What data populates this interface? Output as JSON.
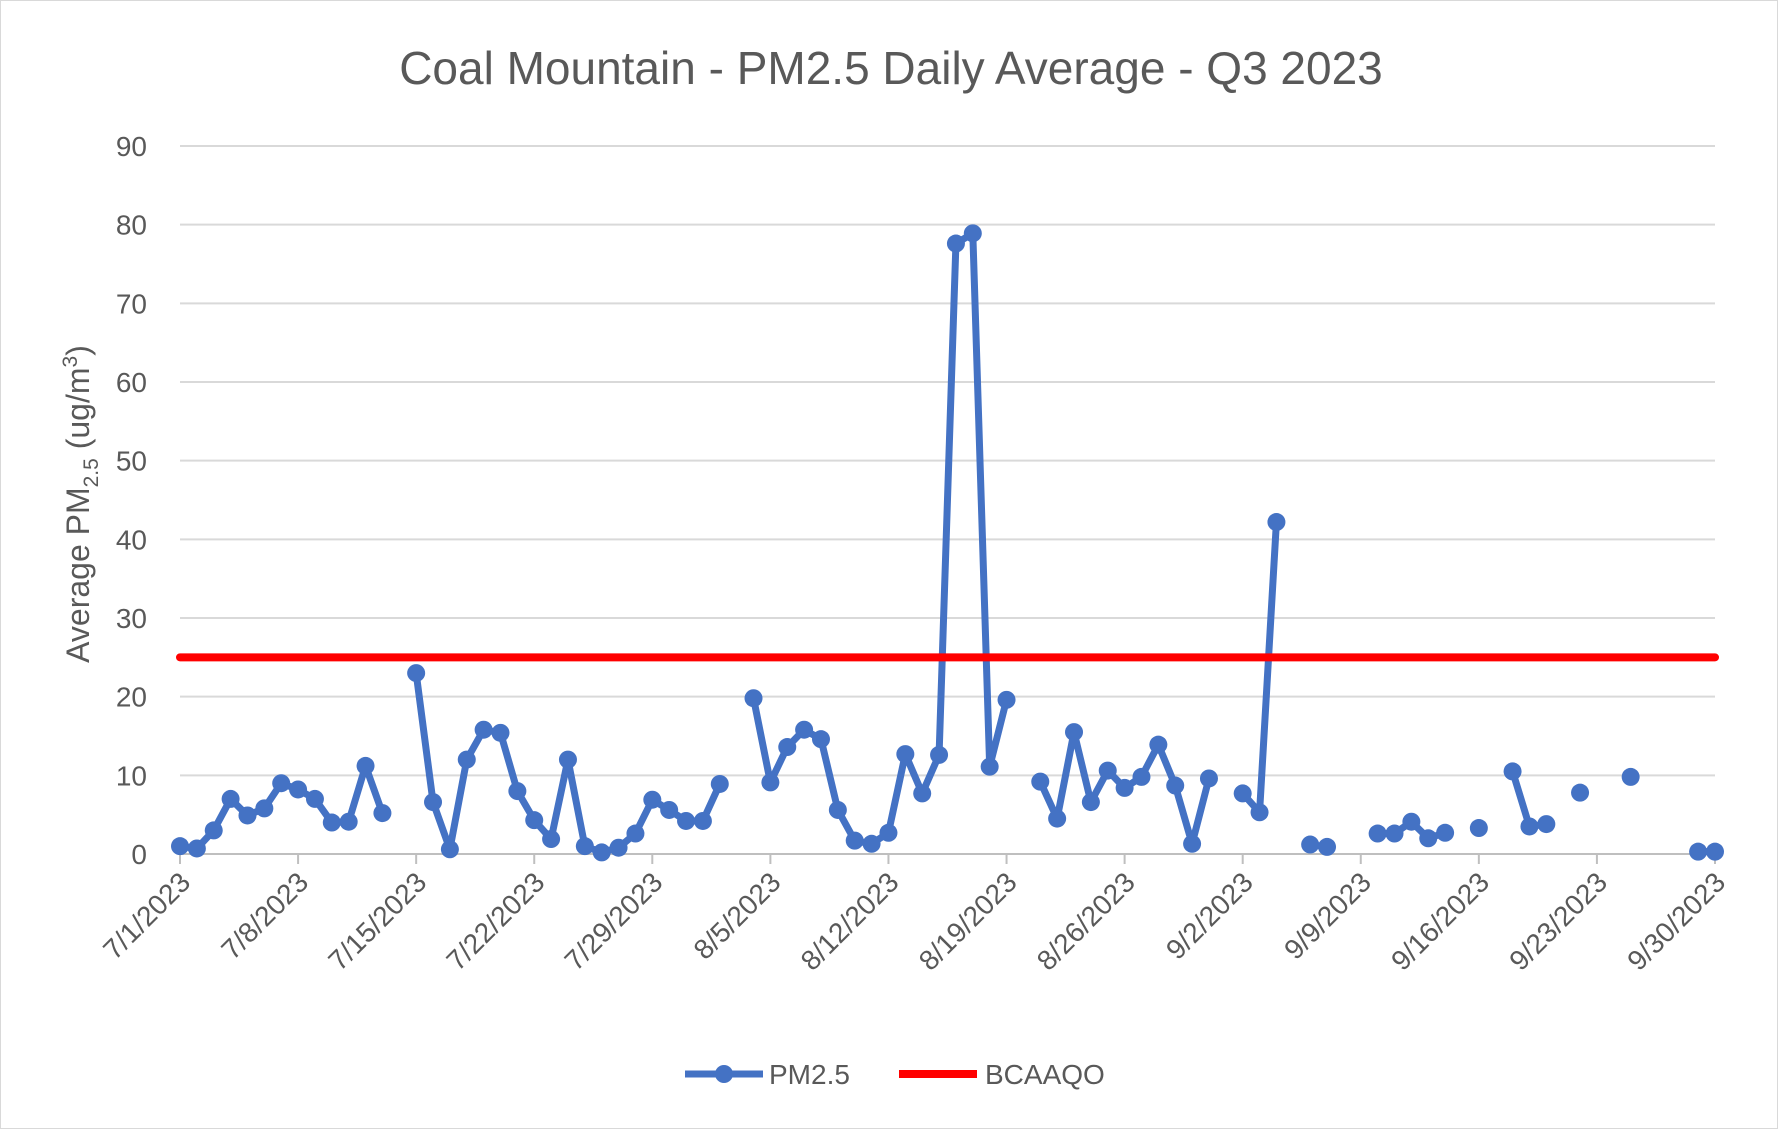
{
  "chart_data": {
    "type": "line",
    "title": "Coal Mountain - PM2.5 Daily Average - Q3 2023",
    "ylabel": "Average PM2.5 (ug/m3)",
    "ylabel_parts": {
      "main": "Average PM",
      "sub": "2.5",
      "unit_open": " (ug/m",
      "sup": "3",
      "unit_close": ")"
    },
    "xlabel": "",
    "ylim": [
      0,
      90
    ],
    "yticks": [
      0,
      10,
      20,
      30,
      40,
      50,
      60,
      70,
      80,
      90
    ],
    "x_start": "7/1/2023",
    "x_end": "9/30/2023",
    "xticks": [
      "7/1/2023",
      "7/8/2023",
      "7/15/2023",
      "7/22/2023",
      "7/29/2023",
      "8/5/2023",
      "8/12/2023",
      "8/19/2023",
      "8/26/2023",
      "9/2/2023",
      "9/9/2023",
      "9/16/2023",
      "9/23/2023",
      "9/30/2023"
    ],
    "grid": true,
    "legend_position": "bottom",
    "series": [
      {
        "name": "PM2.5",
        "color": "#4472C4",
        "marker": "circle",
        "points": [
          [
            "7/1/2023",
            1.0
          ],
          [
            "7/2/2023",
            0.7
          ],
          [
            "7/3/2023",
            3.0
          ],
          [
            "7/4/2023",
            7.0
          ],
          [
            "7/5/2023",
            4.9
          ],
          [
            "7/6/2023",
            5.8
          ],
          [
            "7/7/2023",
            9.0
          ],
          [
            "7/8/2023",
            8.2
          ],
          [
            "7/9/2023",
            7.0
          ],
          [
            "7/10/2023",
            4.0
          ],
          [
            "7/11/2023",
            4.1
          ],
          [
            "7/12/2023",
            11.2
          ],
          [
            "7/13/2023",
            5.2
          ],
          [
            "7/14/2023",
            null
          ],
          [
            "7/15/2023",
            23.0
          ],
          [
            "7/16/2023",
            6.6
          ],
          [
            "7/17/2023",
            0.6
          ],
          [
            "7/18/2023",
            12.0
          ],
          [
            "7/19/2023",
            15.8
          ],
          [
            "7/20/2023",
            15.4
          ],
          [
            "7/21/2023",
            8.0
          ],
          [
            "7/22/2023",
            4.3
          ],
          [
            "7/23/2023",
            1.9
          ],
          [
            "7/24/2023",
            12.0
          ],
          [
            "7/25/2023",
            1.0
          ],
          [
            "7/26/2023",
            0.2
          ],
          [
            "7/27/2023",
            0.8
          ],
          [
            "7/28/2023",
            2.6
          ],
          [
            "7/29/2023",
            6.9
          ],
          [
            "7/30/2023",
            5.6
          ],
          [
            "7/31/2023",
            4.2
          ],
          [
            "8/1/2023",
            4.2
          ],
          [
            "8/2/2023",
            8.9
          ],
          [
            "8/3/2023",
            null
          ],
          [
            "8/4/2023",
            19.8
          ],
          [
            "8/5/2023",
            9.1
          ],
          [
            "8/6/2023",
            13.6
          ],
          [
            "8/7/2023",
            15.8
          ],
          [
            "8/8/2023",
            14.6
          ],
          [
            "8/9/2023",
            5.6
          ],
          [
            "8/10/2023",
            1.7
          ],
          [
            "8/11/2023",
            1.3
          ],
          [
            "8/12/2023",
            2.7
          ],
          [
            "8/13/2023",
            12.7
          ],
          [
            "8/14/2023",
            7.7
          ],
          [
            "8/15/2023",
            12.6
          ],
          [
            "8/16/2023",
            77.6
          ],
          [
            "8/17/2023",
            78.9
          ],
          [
            "8/18/2023",
            11.1
          ],
          [
            "8/19/2023",
            19.6
          ],
          [
            "8/20/2023",
            null
          ],
          [
            "8/21/2023",
            9.2
          ],
          [
            "8/22/2023",
            4.5
          ],
          [
            "8/23/2023",
            15.5
          ],
          [
            "8/24/2023",
            6.6
          ],
          [
            "8/25/2023",
            10.6
          ],
          [
            "8/26/2023",
            8.4
          ],
          [
            "8/27/2023",
            9.8
          ],
          [
            "8/28/2023",
            13.9
          ],
          [
            "8/29/2023",
            8.7
          ],
          [
            "8/30/2023",
            1.3
          ],
          [
            "8/31/2023",
            9.6
          ],
          [
            "9/1/2023",
            null
          ],
          [
            "9/2/2023",
            7.7
          ],
          [
            "9/3/2023",
            5.3
          ],
          [
            "9/4/2023",
            42.2
          ],
          [
            "9/5/2023",
            null
          ],
          [
            "9/6/2023",
            1.2
          ],
          [
            "9/7/2023",
            0.9
          ],
          [
            "9/8/2023",
            null
          ],
          [
            "9/9/2023",
            null
          ],
          [
            "9/10/2023",
            2.6
          ],
          [
            "9/11/2023",
            2.6
          ],
          [
            "9/12/2023",
            4.1
          ],
          [
            "9/13/2023",
            2.0
          ],
          [
            "9/14/2023",
            2.7
          ],
          [
            "9/15/2023",
            null
          ],
          [
            "9/16/2023",
            3.3
          ],
          [
            "9/17/2023",
            null
          ],
          [
            "9/18/2023",
            10.5
          ],
          [
            "9/19/2023",
            3.5
          ],
          [
            "9/20/2023",
            3.8
          ],
          [
            "9/21/2023",
            null
          ],
          [
            "9/22/2023",
            7.8
          ],
          [
            "9/23/2023",
            null
          ],
          [
            "9/24/2023",
            null
          ],
          [
            "9/25/2023",
            9.8
          ],
          [
            "9/26/2023",
            null
          ],
          [
            "9/27/2023",
            null
          ],
          [
            "9/28/2023",
            null
          ],
          [
            "9/29/2023",
            0.3
          ],
          [
            "9/30/2023",
            0.3
          ]
        ]
      },
      {
        "name": "BCAAQO",
        "color": "#FF0000",
        "marker": "none",
        "points": [
          [
            "7/1/2023",
            25
          ],
          [
            "9/30/2023",
            25
          ]
        ]
      }
    ]
  }
}
